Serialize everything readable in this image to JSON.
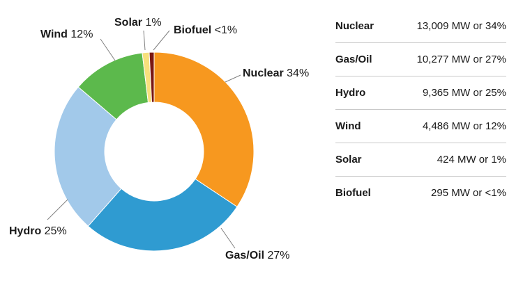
{
  "chart_data": {
    "type": "pie",
    "style": "donut",
    "categories": [
      "Nuclear",
      "Gas/Oil",
      "Hydro",
      "Wind",
      "Solar",
      "Biofuel"
    ],
    "values": [
      13009,
      10277,
      9365,
      4486,
      424,
      295
    ],
    "unit": "MW",
    "percent_labels": [
      "34%",
      "27%",
      "25%",
      "12%",
      "1%",
      "<1%"
    ],
    "colors": [
      "#f7981f",
      "#2f9bd1",
      "#a2c9ea",
      "#5cb94c",
      "#f7e07c",
      "#7a1712"
    ],
    "title": "",
    "legend_placement": "right",
    "table": {
      "rows": [
        {
          "label": "Nuclear",
          "value": "13,009 MW or 34%"
        },
        {
          "label": "Gas/Oil",
          "value": "10,277 MW or 27%"
        },
        {
          "label": "Hydro",
          "value": "9,365 MW or 25%"
        },
        {
          "label": "Wind",
          "value": "4,486 MW or 12%"
        },
        {
          "label": "Solar",
          "value": "424 MW or 1%"
        },
        {
          "label": "Biofuel",
          "value": "295 MW or <1%"
        }
      ]
    }
  }
}
